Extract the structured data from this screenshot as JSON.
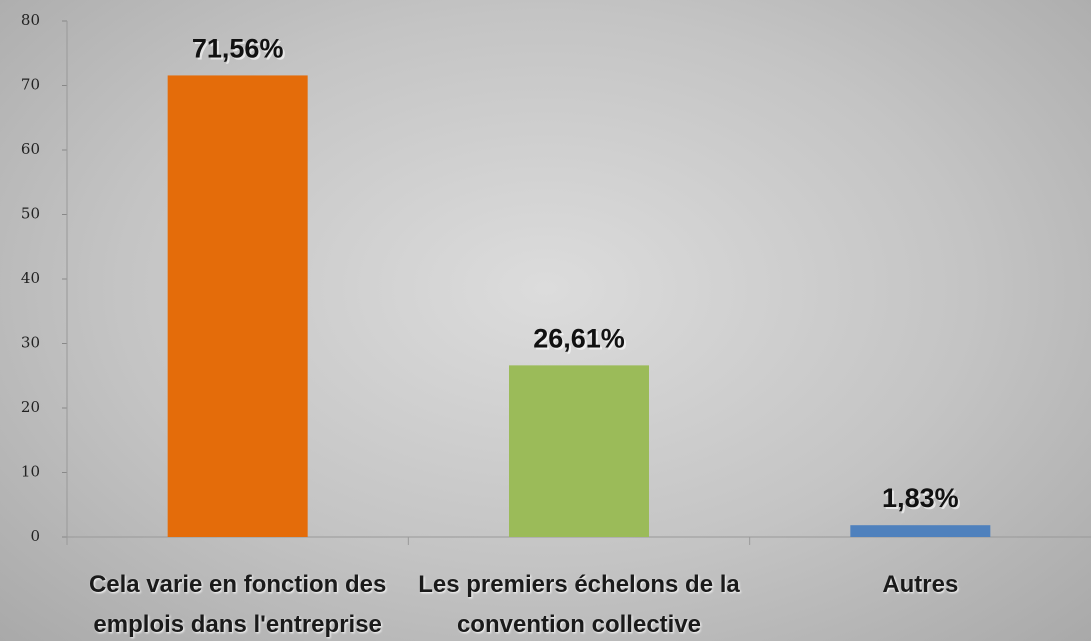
{
  "chart_data": {
    "type": "bar",
    "categories": [
      "Cela varie en fonction des emplois dans l'entreprise",
      "Les premiers échelons de la convention collective",
      "Autres"
    ],
    "values": [
      71.56,
      26.61,
      1.83
    ],
    "value_labels": [
      "71,56%",
      "26,61%",
      "1,83%"
    ],
    "colors": [
      "#e46c0a",
      "#9bbb59",
      "#4f81bd"
    ],
    "ylim": [
      0,
      80
    ],
    "yticks": [
      0,
      10,
      20,
      30,
      40,
      50,
      60,
      70,
      80
    ],
    "grid": false
  }
}
